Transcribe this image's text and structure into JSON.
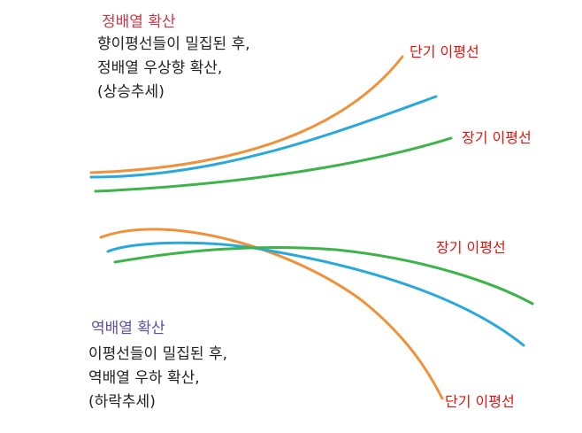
{
  "colors": {
    "short_ma": "#f0913a",
    "mid_ma": "#29a8dc",
    "long_ma": "#3db34a",
    "label_red": "#e8120c",
    "positive_title": "#c8384a",
    "negative_title": "#5b4fa8",
    "body_text": "#222222"
  },
  "top_panel": {
    "title": "정배열 확산",
    "lines": [
      "향이평선들이 밀집된 후,",
      "정배열 우상향 확산,",
      "(상승추세)"
    ],
    "label_short": "단기 이평선",
    "label_long": "장기 이평선"
  },
  "bottom_panel": {
    "title": "역배열 확산",
    "lines": [
      "이평선들이 밀집된 후,",
      "역배열 우하 확산,",
      "(하락추세)"
    ],
    "label_long": "장기 이평선",
    "label_short": "단기 이평선"
  }
}
